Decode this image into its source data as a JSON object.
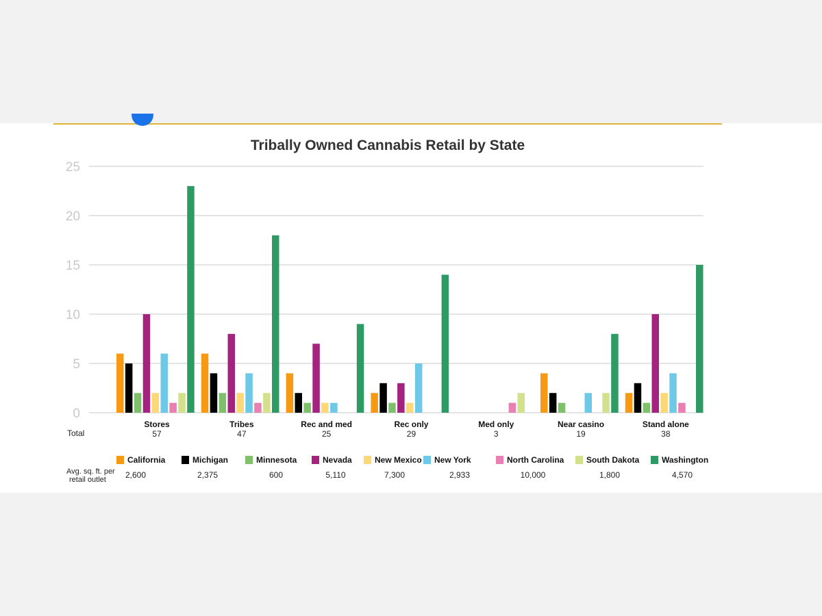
{
  "chart_data": {
    "type": "bar",
    "title": "Tribally Owned Cannabis Retail by State",
    "ylim": [
      0,
      25
    ],
    "yticks": [
      0,
      5,
      10,
      15,
      20,
      25
    ],
    "grid": true,
    "categories": [
      "Stores",
      "Tribes",
      "Rec and med",
      "Rec only",
      "Med only",
      "Near casino",
      "Stand alone"
    ],
    "totals_label": "Total",
    "totals": [
      "57",
      "47",
      "25",
      "29",
      "3",
      "19",
      "38"
    ],
    "series": [
      {
        "name": "California",
        "color": "#f59a12",
        "values": [
          6,
          6,
          4,
          2,
          0,
          4,
          2
        ],
        "avg_sqft": "2,600"
      },
      {
        "name": "Michigan",
        "color": "#000000",
        "values": [
          5,
          4,
          2,
          3,
          0,
          2,
          3
        ],
        "avg_sqft": "2,375"
      },
      {
        "name": "Minnesota",
        "color": "#7ec16a",
        "values": [
          2,
          2,
          1,
          1,
          0,
          1,
          1
        ],
        "avg_sqft": "600"
      },
      {
        "name": "Nevada",
        "color": "#a3237e",
        "values": [
          10,
          8,
          7,
          3,
          0,
          0,
          10
        ],
        "avg_sqft": "5,110"
      },
      {
        "name": "New Mexico",
        "color": "#fcd877",
        "values": [
          2,
          2,
          1,
          1,
          0,
          0,
          2
        ],
        "avg_sqft": "7,300"
      },
      {
        "name": "New York",
        "color": "#6ec9e8",
        "values": [
          6,
          4,
          1,
          5,
          0,
          2,
          4
        ],
        "avg_sqft": "2,933"
      },
      {
        "name": "North Carolina",
        "color": "#ea7fb3",
        "values": [
          1,
          1,
          0,
          0,
          1,
          0,
          1
        ],
        "avg_sqft": "10,000"
      },
      {
        "name": "South Dakota",
        "color": "#d3e08c",
        "values": [
          2,
          2,
          0,
          0,
          2,
          2,
          0
        ],
        "avg_sqft": "1,800"
      },
      {
        "name": "Washington",
        "color": "#2e9a64",
        "values": [
          23,
          18,
          9,
          14,
          0,
          8,
          15
        ],
        "avg_sqft": "4,570"
      }
    ],
    "avg_label_line1": "Avg. sq. ft. per",
    "avg_label_line2": "retail outlet",
    "legend_position": "bottom"
  }
}
